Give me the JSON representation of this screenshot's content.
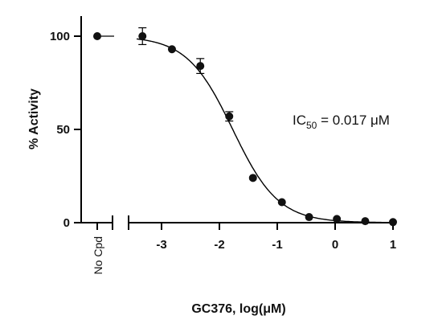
{
  "chart_data": {
    "type": "scatter",
    "title": "",
    "xlabel": "GC376, log(μM)",
    "ylabel": "% Activity",
    "xlim": [
      -3.55,
      1.1
    ],
    "ylim": [
      0,
      110
    ],
    "x_ticks": [
      -3,
      -2,
      -1,
      0,
      1
    ],
    "x_tick_labels": [
      "-3",
      "-2",
      "-1",
      "0",
      "1"
    ],
    "y_ticks": [
      0,
      50,
      100
    ],
    "y_tick_labels": [
      "0",
      "50",
      "100"
    ],
    "control": {
      "label": "No Cpd",
      "y": 100
    },
    "series": [
      {
        "x": [
          -3.33,
          -2.82,
          -2.33,
          -1.83,
          -1.42,
          -0.92,
          -0.45,
          0.03,
          0.52,
          1.0
        ],
        "y": [
          100,
          93,
          84,
          57,
          24,
          11,
          3,
          2,
          0.8,
          0.3
        ],
        "error": [
          4.5,
          1.5,
          4,
          2.5,
          1,
          2,
          0.8,
          0.5,
          0.5,
          0.3
        ]
      }
    ],
    "fit": {
      "top": 100,
      "bottom": 0,
      "log_ic50": -1.77,
      "hill_slope": -1.1
    },
    "annotation": {
      "prefix": "IC",
      "sub": "50",
      "suffix": " = 0.017 μM"
    },
    "grid": false
  }
}
